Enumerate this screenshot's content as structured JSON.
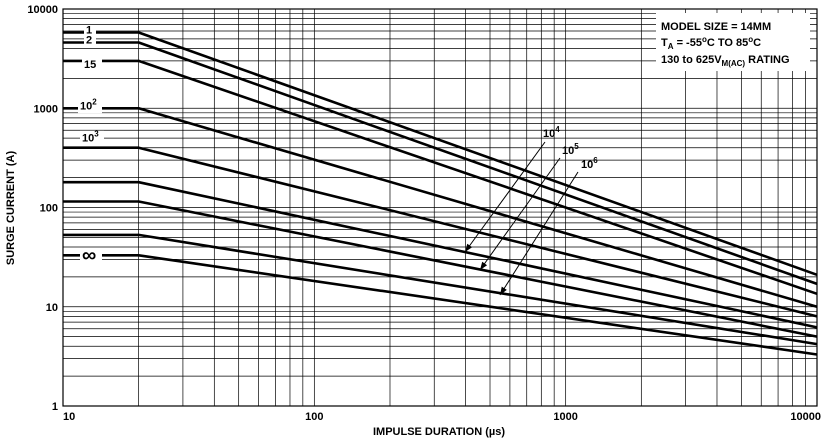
{
  "chart_data": {
    "type": "line",
    "x_scale": "log",
    "y_scale": "log",
    "xlim": [
      10,
      10000
    ],
    "ylim": [
      1,
      10000
    ],
    "grid": true,
    "xlabel": "IMPULSE DURATION (µs)",
    "ylabel": "SURGE CURRENT (A)",
    "x_ticks": [
      "10",
      "100",
      "1000",
      "10000"
    ],
    "y_ticks": [
      "1",
      "10",
      "100",
      "1000",
      "10000"
    ],
    "info_box": {
      "line1": "MODEL SIZE = 14MM",
      "line2_main": "T",
      "line2_sub": "A",
      "line2_rest": " = -55",
      "line2_sup": "o",
      "line2_mid": "C TO 85",
      "line2_sup2": "o",
      "line2_end": "C",
      "line3_main": "130 to 625V",
      "line3_sub": "M(AC)",
      "line3_end": " RATING"
    },
    "series": [
      {
        "name": "1",
        "label_main": "1",
        "label_sup": "",
        "values": [
          [
            10,
            5800
          ],
          [
            20,
            5800
          ],
          [
            10000,
            21
          ]
        ]
      },
      {
        "name": "2",
        "label_main": "2",
        "label_sup": "",
        "values": [
          [
            10,
            4600
          ],
          [
            20,
            4600
          ],
          [
            10000,
            17
          ]
        ]
      },
      {
        "name": "15",
        "label_main": "15",
        "label_sup": "",
        "values": [
          [
            10,
            3000
          ],
          [
            20,
            3000
          ],
          [
            10000,
            13.5
          ]
        ]
      },
      {
        "name": "10^2",
        "label_main": "10",
        "label_sup": "2",
        "values": [
          [
            10,
            1000
          ],
          [
            20,
            1000
          ],
          [
            10000,
            10
          ]
        ]
      },
      {
        "name": "10^3",
        "label_main": "10",
        "label_sup": "3",
        "values": [
          [
            10,
            400
          ],
          [
            20,
            400
          ],
          [
            10000,
            8
          ]
        ]
      },
      {
        "name": "10^4",
        "label_main": "10",
        "label_sup": "4",
        "values": [
          [
            10,
            180
          ],
          [
            20,
            180
          ],
          [
            10000,
            6.2
          ]
        ]
      },
      {
        "name": "10^5",
        "label_main": "10",
        "label_sup": "5",
        "values": [
          [
            10,
            115
          ],
          [
            20,
            115
          ],
          [
            10000,
            5
          ]
        ]
      },
      {
        "name": "10^6",
        "label_main": "10",
        "label_sup": "6",
        "values": [
          [
            10,
            53
          ],
          [
            20,
            53
          ],
          [
            10000,
            4.2
          ]
        ]
      },
      {
        "name": "∞",
        "label_main": "∞",
        "label_sup": "",
        "values": [
          [
            10,
            33
          ],
          [
            20,
            33
          ],
          [
            10000,
            3.3
          ]
        ]
      }
    ]
  }
}
